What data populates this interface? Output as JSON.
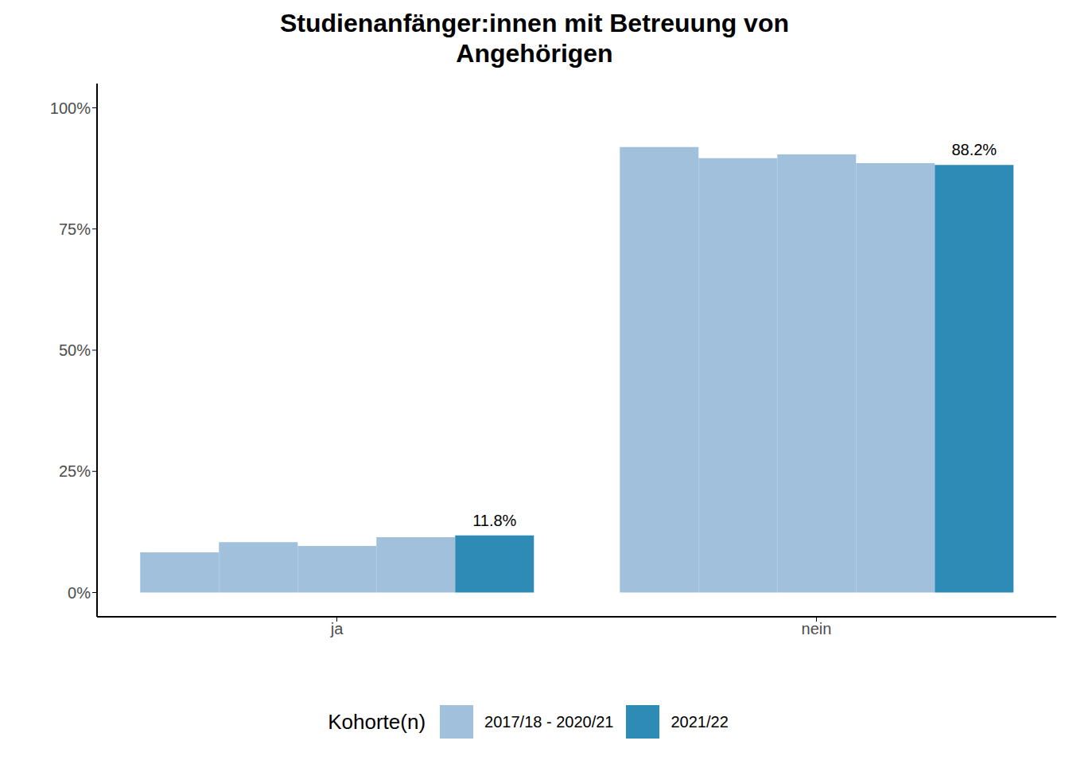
{
  "chart_data": {
    "type": "bar",
    "title": "Studienanfänger:innen mit Betreuung von Angehörigen",
    "legend_title": "Kohorte(n)",
    "categories": [
      "ja",
      "nein"
    ],
    "series": [
      {
        "name": "2017/18 - 2020/21",
        "color": "#a1c0dc",
        "values": [
          [
            8.3,
            10.4,
            9.6,
            11.4
          ],
          [
            91.9,
            89.6,
            90.4,
            88.6
          ]
        ]
      },
      {
        "name": "2021/22",
        "color": "#2e8bb6",
        "values": [
          11.8,
          88.2
        ],
        "value_labels": [
          "11.8%",
          "88.2%"
        ],
        "data_labels": true
      }
    ],
    "ylim": [
      -5,
      105
    ],
    "yticks": [
      {
        "value": 0,
        "label": "0%"
      },
      {
        "value": 25,
        "label": "25%"
      },
      {
        "value": 50,
        "label": "50%"
      },
      {
        "value": 75,
        "label": "75%"
      },
      {
        "value": 100,
        "label": "100%"
      }
    ],
    "grid": false,
    "legend": "bottom"
  }
}
